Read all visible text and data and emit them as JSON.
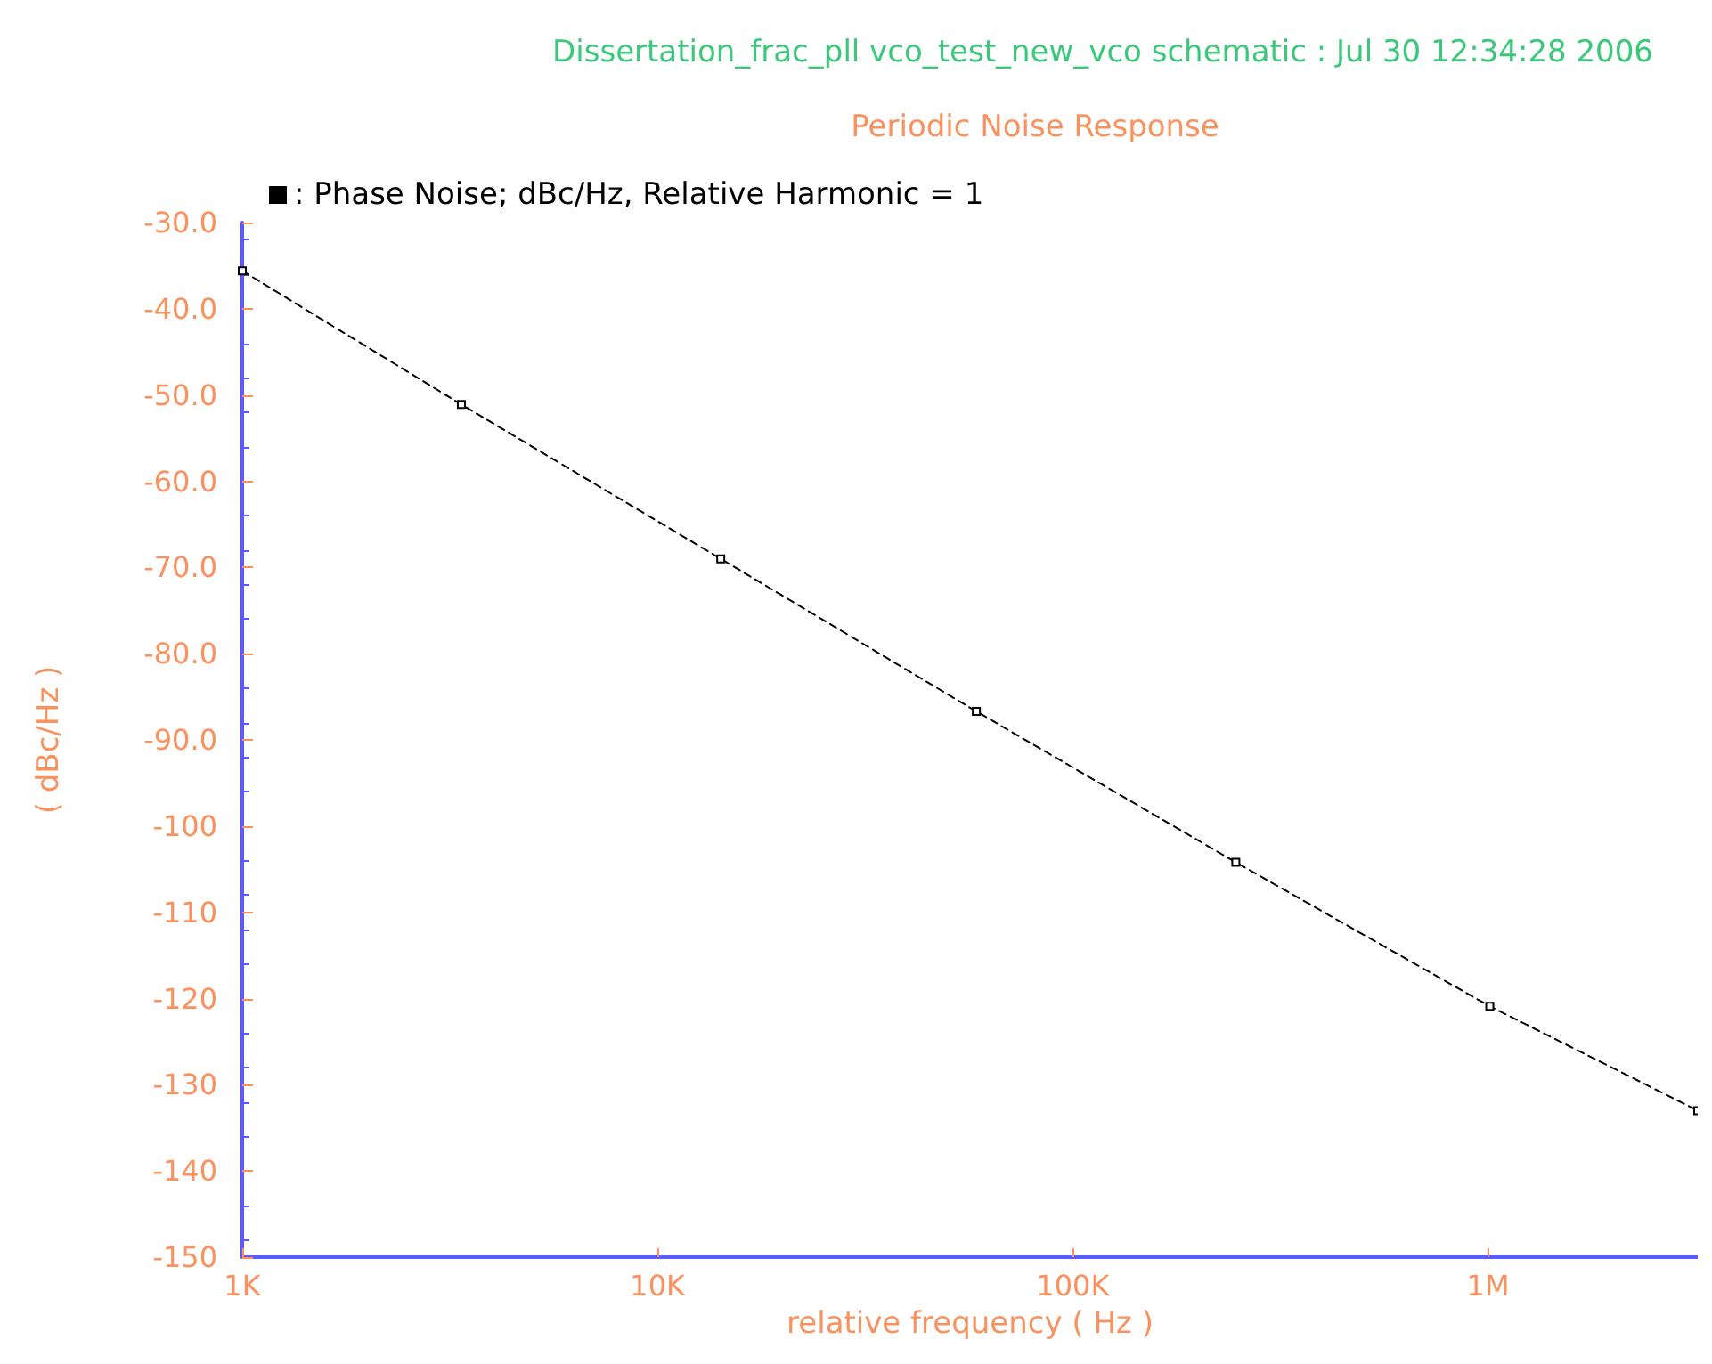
{
  "chart_data": {
    "type": "line",
    "title": "Dissertation_frac_pll vco_test_new_vco schematic : Jul 30 12:34:28 2006",
    "subtitle": "Periodic Noise Response",
    "xlabel": "relative frequency ( Hz )",
    "ylabel": "( dBc/Hz )",
    "log": "x",
    "grid": false,
    "legend": "top left",
    "marker": "square",
    "line_style": "dashed",
    "xlim": [
      1000,
      3200000
    ],
    "xticks": [
      {
        "value": 1000,
        "label": "1K"
      },
      {
        "value": 10000,
        "label": "10K"
      },
      {
        "value": 100000,
        "label": "100K"
      },
      {
        "value": 1000000,
        "label": "1M"
      }
    ],
    "ylim": [
      -150,
      -30
    ],
    "yticks": [
      {
        "value": -150,
        "label": "-150"
      },
      {
        "value": -140,
        "label": "-140"
      },
      {
        "value": -130,
        "label": "-130"
      },
      {
        "value": -120,
        "label": "-120"
      },
      {
        "value": -110,
        "label": "-110"
      },
      {
        "value": -100,
        "label": "-100"
      },
      {
        "value": -90,
        "label": "-90.0"
      },
      {
        "value": -80,
        "label": "-80.0"
      },
      {
        "value": -70,
        "label": "-70.0"
      },
      {
        "value": -60,
        "label": "-60.0"
      },
      {
        "value": -50,
        "label": "-50.0"
      },
      {
        "value": -40,
        "label": "-40.0"
      },
      {
        "value": -30,
        "label": "-30.0"
      }
    ],
    "series": [
      {
        "name": ": Phase Noise; dBc/Hz, Relative Harmonic = 1",
        "color": "#000000",
        "x": [
          1000,
          3370,
          14200,
          58600,
          247000,
          1010000,
          3200000
        ],
        "values": [
          -35.6,
          -51.1,
          -69.0,
          -86.7,
          -104.2,
          -120.9,
          -133.0
        ]
      }
    ]
  }
}
